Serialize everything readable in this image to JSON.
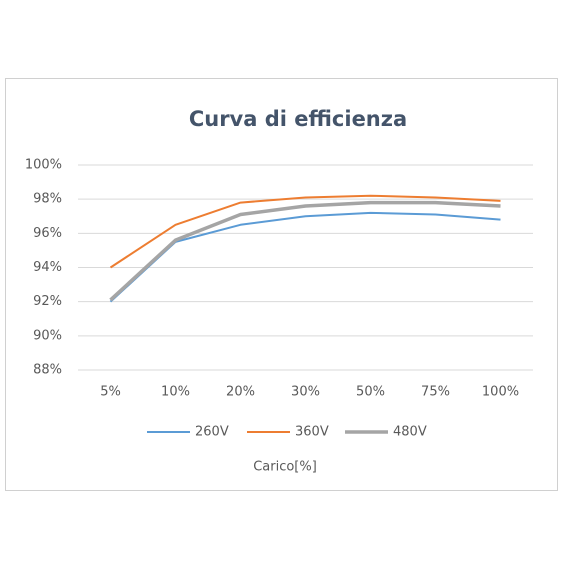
{
  "chart_data": {
    "type": "line",
    "title": "Curva di efficienza",
    "x_label": "Carico[%]",
    "categories": [
      "5%",
      "10%",
      "20%",
      "30%",
      "50%",
      "75%",
      "100%"
    ],
    "series": [
      {
        "name": "260V",
        "color": "#5b9bd5",
        "values": [
          92.0,
          95.5,
          96.5,
          97.0,
          97.2,
          97.1,
          96.8
        ]
      },
      {
        "name": "360V",
        "color": "#ed7d31",
        "values": [
          94.0,
          96.5,
          97.8,
          98.1,
          98.2,
          98.1,
          97.9
        ]
      },
      {
        "name": "480V",
        "color": "#a5a5a5",
        "values": [
          92.1,
          95.6,
          97.1,
          97.6,
          97.8,
          97.8,
          97.6
        ]
      }
    ],
    "ylim": [
      88,
      100
    ],
    "yticks": [
      {
        "value": 88,
        "label": "88%"
      },
      {
        "value": 90,
        "label": "90%"
      },
      {
        "value": 92,
        "label": "92%"
      },
      {
        "value": 94,
        "label": "94%"
      },
      {
        "value": 96,
        "label": "96%"
      },
      {
        "value": 98,
        "label": "98%"
      },
      {
        "value": 100,
        "label": "100%"
      }
    ],
    "grid": true,
    "legend": "bottom"
  }
}
